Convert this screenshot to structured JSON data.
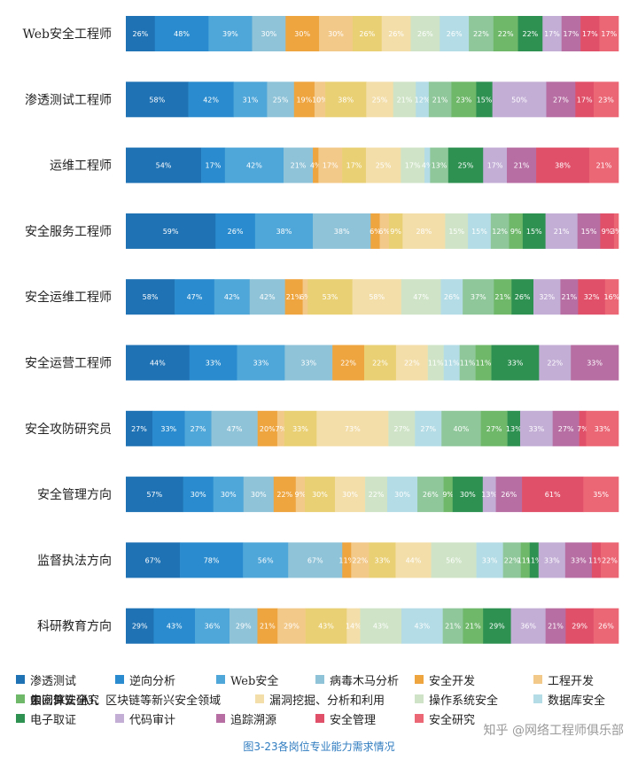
{
  "chart_data": {
    "type": "bar",
    "stacked": true,
    "orientation": "horizontal",
    "title": "",
    "xlabel": "",
    "ylabel": "",
    "categories": [
      "Web安全工程师",
      "渗透测试工程师",
      "运维工程师",
      "安全服务工程师",
      "安全运维工程师",
      "安全运营工程师",
      "安全攻防研究员",
      "安全管理方向",
      "监督执法方向",
      "科研教育方向"
    ],
    "legend_position": "bottom",
    "grid": false,
    "series": [
      {
        "name": "渗透测试",
        "color": "#1f72b4",
        "values": [
          26,
          58,
          54,
          59,
          58,
          44,
          27,
          57,
          67,
          29
        ],
        "labels": [
          "26%",
          "58%",
          "54%",
          "59%",
          "58%",
          "44%",
          "27%",
          "57%",
          "67%",
          "29%"
        ]
      },
      {
        "name": "逆向分析",
        "color": "#2a8cce",
        "values": [
          48,
          42,
          17,
          26,
          47,
          33,
          33,
          30,
          78,
          43
        ],
        "labels": [
          "48%",
          "42%",
          "17%",
          "26%",
          "47%",
          "33%",
          "33%",
          "30%",
          "78%",
          "43%"
        ]
      },
      {
        "name": "Web安全",
        "color": "#4ea6d9",
        "values": [
          39,
          31,
          42,
          38,
          42,
          33,
          27,
          30,
          56,
          36
        ],
        "labels": [
          "39%",
          "31%",
          "42%",
          "38%",
          "42%",
          "33%",
          "27%",
          "30%",
          "56%",
          "36%"
        ]
      },
      {
        "name": "病毒木马分析",
        "color": "#8fc3d8",
        "values": [
          30,
          25,
          21,
          38,
          42,
          33,
          47,
          30,
          67,
          29
        ],
        "labels": [
          "30%",
          "25%",
          "21%",
          "38%",
          "42%",
          "33%",
          "47%",
          "30%",
          "67%",
          "29%"
        ]
      },
      {
        "name": "安全开发",
        "color": "#eea43f",
        "values": [
          30,
          19,
          4,
          6,
          21,
          22,
          20,
          22,
          11,
          21
        ],
        "labels": [
          "30%",
          "19%",
          "4%",
          "6%",
          "21%",
          "22%",
          "20%",
          "22%",
          "11%",
          "21%"
        ]
      },
      {
        "name": "工程开发",
        "color": "#f3c98a",
        "values": [
          30,
          10,
          17,
          6,
          6,
          0,
          7,
          9,
          22,
          29
        ],
        "labels": [
          "30%",
          "10%",
          "17%",
          "6%",
          "6%",
          "",
          "7%",
          "9%",
          "22%",
          "29%"
        ]
      },
      {
        "name": "云、5G、AI、区块链等新兴安全领域",
        "color": "#ead074",
        "values": [
          26,
          38,
          17,
          9,
          53,
          22,
          33,
          30,
          33,
          43
        ],
        "labels": [
          "26%",
          "38%",
          "17%",
          "9%",
          "53%",
          "22%",
          "33%",
          "30%",
          "33%",
          "43%"
        ]
      },
      {
        "name": "漏洞挖掘、分析和利用",
        "color": "#f3deaa",
        "values": [
          26,
          25,
          25,
          28,
          58,
          22,
          73,
          30,
          44,
          14
        ],
        "labels": [
          "26%",
          "25%",
          "25%",
          "28%",
          "58%",
          "22%",
          "73%",
          "30%",
          "44%",
          "14%"
        ]
      },
      {
        "name": "操作系统安全",
        "color": "#cfe4c7",
        "values": [
          26,
          21,
          17,
          15,
          47,
          11,
          27,
          22,
          56,
          43
        ],
        "labels": [
          "26%",
          "21%",
          "17%",
          "15%",
          "47%",
          "11%",
          "27%",
          "22%",
          "56%",
          "43%"
        ]
      },
      {
        "name": "数据库安全",
        "color": "#b3dce6",
        "values": [
          26,
          12,
          4,
          15,
          26,
          11,
          27,
          30,
          33,
          43
        ],
        "labels": [
          "26%",
          "12%",
          "4%",
          "15%",
          "26%",
          "11%",
          "27%",
          "30%",
          "33%",
          "43%"
        ]
      },
      {
        "name": "中间件安全",
        "color": "#8fc79a",
        "values": [
          22,
          21,
          13,
          12,
          37,
          11,
          40,
          26,
          22,
          21
        ],
        "labels": [
          "22%",
          "21%",
          "13%",
          "12%",
          "37%",
          "11%",
          "40%",
          "26%",
          "22%",
          "21%"
        ]
      },
      {
        "name": "加密算法研究",
        "color": "#6fb86a",
        "values": [
          22,
          23,
          0,
          9,
          21,
          11,
          27,
          9,
          11,
          21
        ],
        "labels": [
          "22%",
          "23%",
          "",
          "9%",
          "21%",
          "11%",
          "27%",
          "9%",
          "11%",
          "21%"
        ]
      },
      {
        "name": "电子取证",
        "color": "#2e9152",
        "values": [
          22,
          15,
          25,
          15,
          26,
          33,
          13,
          30,
          11,
          29
        ],
        "labels": [
          "22%",
          "15%",
          "25%",
          "15%",
          "26%",
          "33%",
          "13%",
          "30%",
          "11%",
          "29%"
        ]
      },
      {
        "name": "代码审计",
        "color": "#c3aed6",
        "values": [
          17,
          50,
          17,
          21,
          32,
          22,
          33,
          13,
          33,
          36
        ],
        "labels": [
          "17%",
          "50%",
          "17%",
          "21%",
          "32%",
          "22%",
          "33%",
          "13%",
          "33%",
          "36%"
        ]
      },
      {
        "name": "追踪溯源",
        "color": "#b76ea3",
        "values": [
          17,
          27,
          21,
          15,
          21,
          33,
          27,
          26,
          33,
          21
        ],
        "labels": [
          "17%",
          "27%",
          "21%",
          "15%",
          "21%",
          "33%",
          "27%",
          "26%",
          "33%",
          "21%"
        ]
      },
      {
        "name": "安全管理",
        "color": "#e05069",
        "values": [
          17,
          17,
          38,
          9,
          32,
          0,
          7,
          61,
          11,
          29
        ],
        "labels": [
          "17%",
          "17%",
          "38%",
          "9%",
          "32%",
          "",
          "7%",
          "61%",
          "11%",
          "29%"
        ]
      },
      {
        "name": "安全研究",
        "color": "#ec6775",
        "values": [
          17,
          23,
          21,
          3,
          16,
          0,
          33,
          35,
          22,
          26
        ],
        "labels": [
          "17%",
          "23%",
          "21%",
          "3%",
          "16%",
          "",
          "33%",
          "35%",
          "22%",
          "26%"
        ]
      }
    ]
  },
  "caption": "图3-23各岗位专业能力需求情况",
  "watermark": "知乎 @网络工程师俱乐部"
}
